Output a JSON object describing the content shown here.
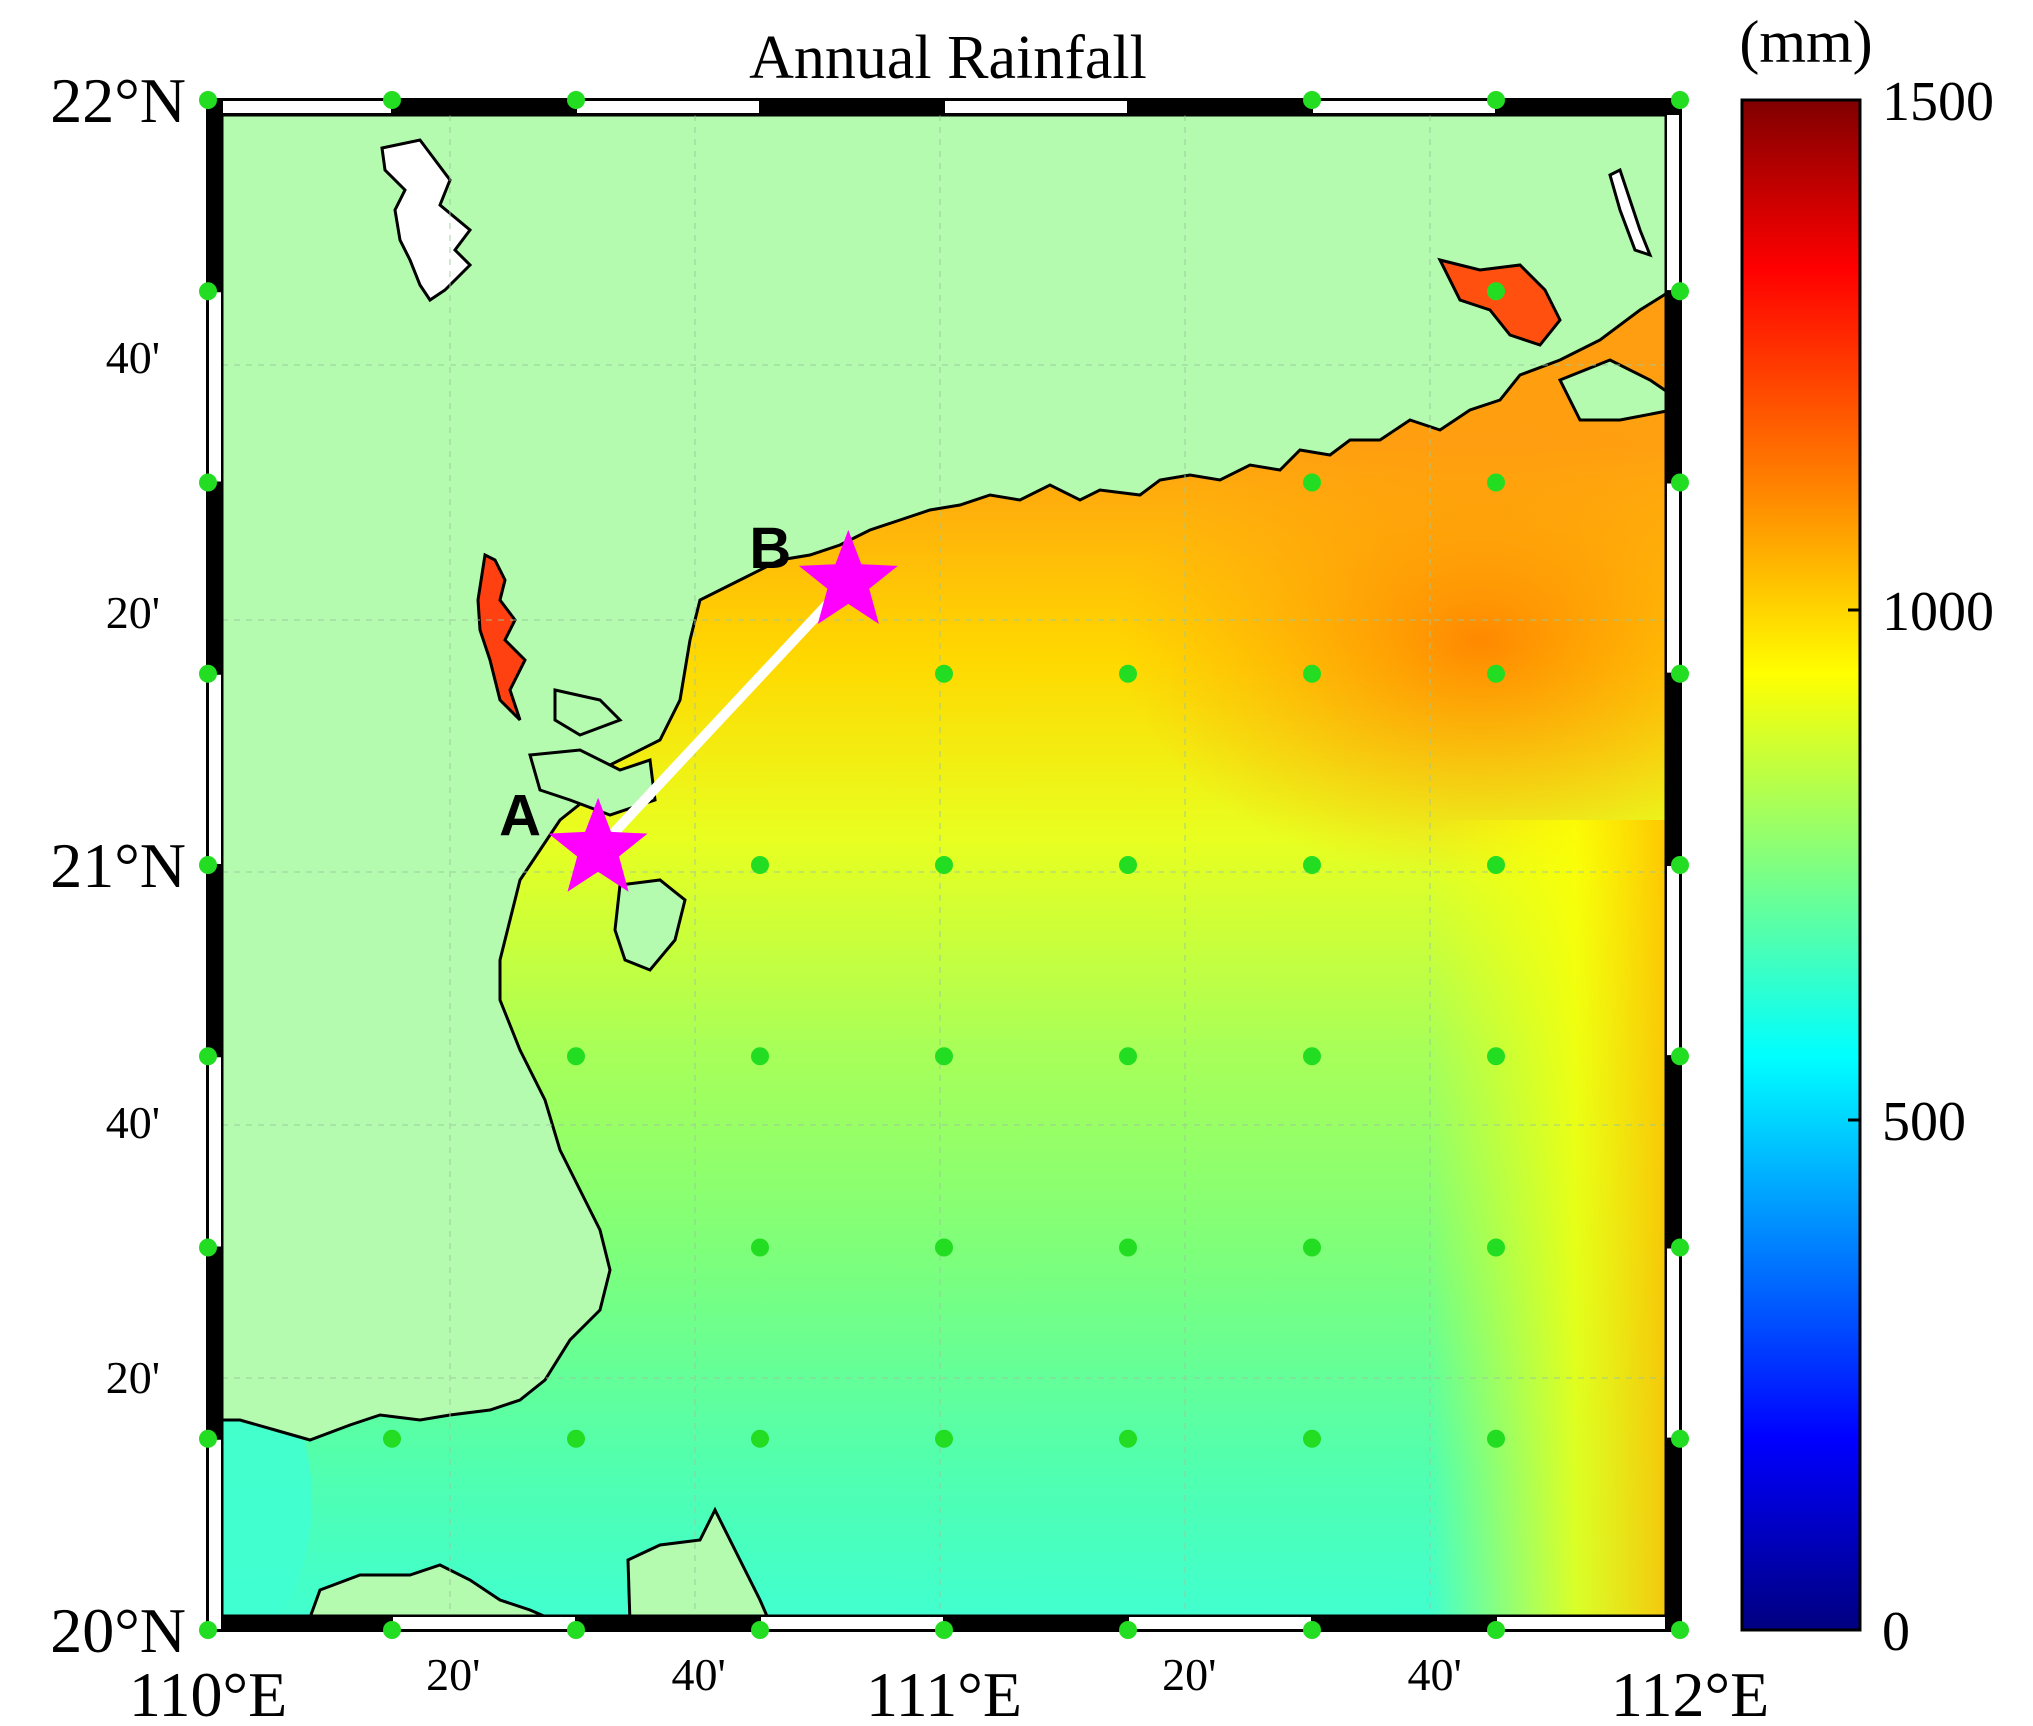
{
  "map": {
    "title": "Annual Rainfall",
    "unit_label": "(mm)",
    "lat_labels": [
      "22°N",
      "40'",
      "20'",
      "21°N",
      "40'",
      "20'",
      "20°N"
    ],
    "lon_labels": [
      "110°E",
      "20'",
      "40'",
      "111°E",
      "20'",
      "40'",
      "112°E"
    ],
    "extent": {
      "lon": [
        110,
        112
      ],
      "lat": [
        20,
        22
      ]
    },
    "colorbar": {
      "range": [
        0,
        1500
      ],
      "ticks": [
        "1500",
        "1000",
        "500",
        "0"
      ],
      "tick_values": [
        1500,
        1000,
        500,
        0
      ],
      "colormap": "jet",
      "colors": [
        "#800000",
        "#ff0000",
        "#ff8000",
        "#ffff00",
        "#80ff80",
        "#00ffff",
        "#0080ff",
        "#0000ff",
        "#000080"
      ]
    },
    "land_color": "#b4fbb0",
    "station_color": "#22dd22",
    "markers": [
      {
        "label": "A",
        "lon": 110.53,
        "lat": 21.02,
        "color": "#ff00ff"
      },
      {
        "label": "B",
        "lon": 110.87,
        "lat": 21.37,
        "color": "#ff00ff"
      }
    ],
    "transect": {
      "from": "A",
      "to": "B",
      "color": "#ffffff"
    },
    "stations": [
      [
        110.0,
        22.0
      ],
      [
        110.25,
        22.0
      ],
      [
        110.5,
        22.0
      ],
      [
        111.5,
        22.0
      ],
      [
        111.75,
        22.0
      ],
      [
        112.0,
        22.0
      ],
      [
        110.0,
        21.75
      ],
      [
        111.75,
        21.75
      ],
      [
        112.0,
        21.75
      ],
      [
        110.0,
        21.5
      ],
      [
        111.5,
        21.5
      ],
      [
        111.75,
        21.5
      ],
      [
        112.0,
        21.5
      ],
      [
        110.0,
        21.25
      ],
      [
        111.0,
        21.25
      ],
      [
        111.25,
        21.25
      ],
      [
        111.5,
        21.25
      ],
      [
        111.75,
        21.25
      ],
      [
        112.0,
        21.25
      ],
      [
        110.0,
        21.0
      ],
      [
        110.75,
        21.0
      ],
      [
        111.0,
        21.0
      ],
      [
        111.25,
        21.0
      ],
      [
        111.5,
        21.0
      ],
      [
        111.75,
        21.0
      ],
      [
        112.0,
        21.0
      ],
      [
        110.0,
        20.75
      ],
      [
        110.5,
        20.75
      ],
      [
        110.75,
        20.75
      ],
      [
        111.0,
        20.75
      ],
      [
        111.25,
        20.75
      ],
      [
        111.5,
        20.75
      ],
      [
        111.75,
        20.75
      ],
      [
        112.0,
        20.75
      ],
      [
        110.0,
        20.5
      ],
      [
        110.75,
        20.5
      ],
      [
        111.0,
        20.5
      ],
      [
        111.25,
        20.5
      ],
      [
        111.5,
        20.5
      ],
      [
        111.75,
        20.5
      ],
      [
        112.0,
        20.5
      ],
      [
        110.0,
        20.25
      ],
      [
        110.25,
        20.25
      ],
      [
        110.5,
        20.25
      ],
      [
        110.75,
        20.25
      ],
      [
        111.0,
        20.25
      ],
      [
        111.25,
        20.25
      ],
      [
        111.5,
        20.25
      ],
      [
        111.75,
        20.25
      ],
      [
        112.0,
        20.25
      ],
      [
        110.0,
        20.0
      ],
      [
        110.25,
        20.0
      ],
      [
        110.5,
        20.0
      ],
      [
        110.75,
        20.0
      ],
      [
        111.0,
        20.0
      ],
      [
        111.25,
        20.0
      ],
      [
        111.5,
        20.0
      ],
      [
        111.75,
        20.0
      ],
      [
        112.0,
        20.0
      ]
    ]
  }
}
